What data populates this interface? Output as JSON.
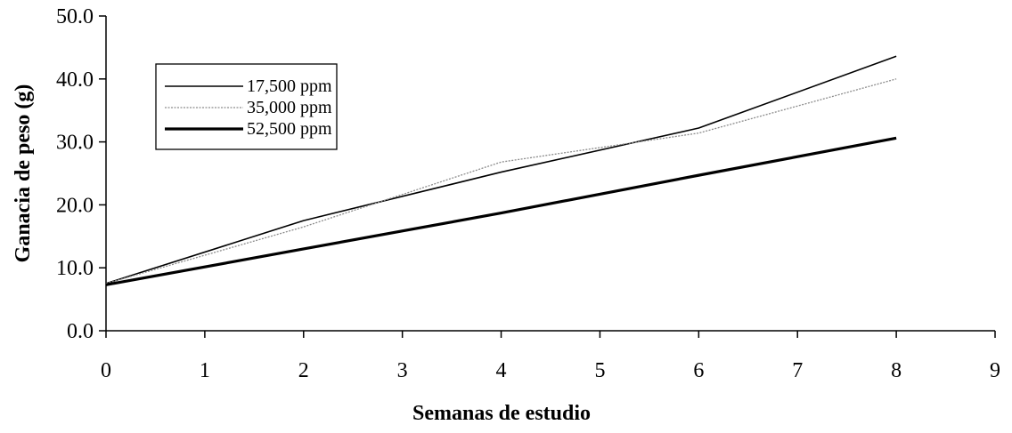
{
  "chart_data": {
    "type": "line",
    "title": "",
    "xlabel": "Semanas de estudio",
    "ylabel": "Ganacia de peso (g)",
    "xlim": [
      0,
      9
    ],
    "ylim": [
      0,
      50
    ],
    "x_ticks": [
      "0",
      "1",
      "2",
      "3",
      "4",
      "5",
      "6",
      "7",
      "8",
      "9"
    ],
    "y_ticks": [
      "0.0",
      "10.0",
      "20.0",
      "30.0",
      "40.0",
      "50.0"
    ],
    "grid": false,
    "legend_position": "top-left",
    "series": [
      {
        "name": "17,500 ppm",
        "color": "#000000",
        "style": "solid-thin",
        "x": [
          0,
          2,
          4,
          6,
          8
        ],
        "y": [
          7.5,
          17.5,
          25.2,
          32.2,
          43.6
        ]
      },
      {
        "name": "35,000 ppm",
        "color": "#8c8c8c",
        "style": "dotted-thin",
        "x": [
          0,
          2,
          4,
          6,
          8
        ],
        "y": [
          7.5,
          16.5,
          26.8,
          31.4,
          40.0
        ]
      },
      {
        "name": "52,500 ppm",
        "color": "#000000",
        "style": "solid-thick",
        "x": [
          0,
          2,
          4,
          6,
          8
        ],
        "y": [
          7.3,
          13.0,
          18.7,
          24.7,
          30.6
        ]
      }
    ]
  }
}
